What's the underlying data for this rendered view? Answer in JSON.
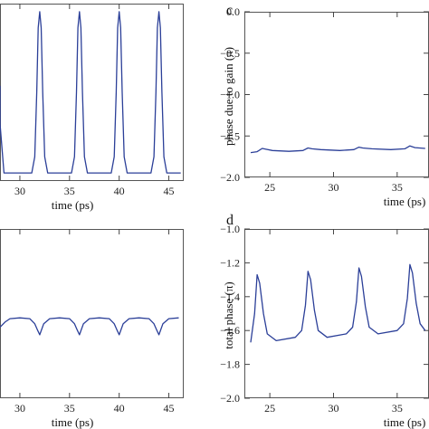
{
  "figure": {
    "background": "#ffffff",
    "line_color": "#2b3f98"
  },
  "chart_data": [
    {
      "id": "a",
      "type": "line",
      "panel_letter": "",
      "title": "",
      "xlabel": "time (ps)",
      "ylabel": "",
      "xlim": [
        28,
        46.5
      ],
      "ylim": [
        -0.05,
        1.05
      ],
      "xticks": [
        30,
        35,
        40,
        45
      ],
      "xtick_labels": [
        "30",
        "35",
        "40",
        "45"
      ],
      "yticks": [],
      "ytick_labels": [],
      "grid": false,
      "series": [
        {
          "x": [
            28.0,
            28.01,
            28.4,
            29.5,
            30.5,
            31.2,
            31.5,
            31.7,
            31.85,
            32.0,
            32.15,
            32.3,
            32.5,
            32.8,
            34.5,
            35.2,
            35.5,
            35.7,
            35.85,
            36.0,
            36.15,
            36.3,
            36.5,
            36.8,
            38.5,
            39.2,
            39.5,
            39.7,
            39.85,
            40.0,
            40.15,
            40.3,
            40.5,
            40.8,
            42.5,
            43.2,
            43.5,
            43.7,
            43.85,
            44.0,
            44.15,
            44.3,
            44.5,
            44.8,
            46.2
          ],
          "y": [
            0.54,
            0.3,
            0.0,
            0.0,
            0.0,
            0.0,
            0.1,
            0.5,
            0.9,
            1.0,
            0.9,
            0.5,
            0.1,
            0.0,
            0.0,
            0.0,
            0.1,
            0.5,
            0.9,
            1.0,
            0.9,
            0.5,
            0.1,
            0.0,
            0.0,
            0.0,
            0.1,
            0.5,
            0.9,
            1.0,
            0.9,
            0.5,
            0.1,
            0.0,
            0.0,
            0.0,
            0.1,
            0.5,
            0.9,
            1.0,
            0.9,
            0.5,
            0.1,
            0.0,
            0.0
          ]
        }
      ]
    },
    {
      "id": "c",
      "type": "line",
      "panel_letter": "c",
      "title": "",
      "xlabel": "time (ps)",
      "ylabel": "phase due to gain (π)",
      "xlim": [
        23,
        37.5
      ],
      "ylim": [
        -2.0,
        0.0
      ],
      "xticks": [
        25,
        30,
        35
      ],
      "xtick_labels": [
        "25",
        "30",
        "35"
      ],
      "yticks": [
        0.0,
        -0.5,
        -1.0,
        -1.5,
        -2.0
      ],
      "ytick_labels": [
        "0.0",
        "−0.5",
        "−1.0",
        "−1.5",
        "−2.0"
      ],
      "grid": false,
      "series": [
        {
          "x": [
            23.5,
            24.0,
            24.4,
            24.7,
            25.2,
            26.5,
            27.6,
            28.0,
            28.3,
            29.0,
            30.5,
            31.6,
            32.0,
            32.3,
            33.0,
            34.5,
            35.6,
            36.0,
            36.4,
            37.2
          ],
          "y": [
            -1.7,
            -1.69,
            -1.65,
            -1.66,
            -1.675,
            -1.685,
            -1.675,
            -1.645,
            -1.655,
            -1.665,
            -1.675,
            -1.665,
            -1.635,
            -1.645,
            -1.655,
            -1.665,
            -1.655,
            -1.62,
            -1.64,
            -1.65
          ]
        }
      ]
    },
    {
      "id": "b",
      "type": "line",
      "panel_letter": "",
      "title": "",
      "xlabel": "time (ps)",
      "ylabel": "",
      "xlim": [
        28,
        46.5
      ],
      "ylim": [
        0.0,
        1.0
      ],
      "xticks": [
        30,
        35,
        40,
        45
      ],
      "xtick_labels": [
        "30",
        "35",
        "40",
        "45"
      ],
      "yticks": [],
      "ytick_labels": [],
      "grid": false,
      "series": [
        {
          "x": [
            28.0,
            28.5,
            29.0,
            30.0,
            31.0,
            31.5,
            31.8,
            32.0,
            32.4,
            33.0,
            34.0,
            35.0,
            35.5,
            35.8,
            36.0,
            36.4,
            37.0,
            38.0,
            39.0,
            39.5,
            39.8,
            40.0,
            40.4,
            41.0,
            42.0,
            43.0,
            43.5,
            43.8,
            44.0,
            44.4,
            45.0,
            46.0
          ],
          "y": [
            0.42,
            0.45,
            0.47,
            0.475,
            0.47,
            0.44,
            0.4,
            0.375,
            0.44,
            0.47,
            0.475,
            0.47,
            0.44,
            0.4,
            0.375,
            0.44,
            0.47,
            0.475,
            0.47,
            0.44,
            0.4,
            0.375,
            0.44,
            0.47,
            0.475,
            0.47,
            0.44,
            0.4,
            0.375,
            0.44,
            0.47,
            0.475
          ]
        }
      ]
    },
    {
      "id": "d",
      "type": "line",
      "panel_letter": "d",
      "title": "",
      "xlabel": "time (ps)",
      "ylabel": "total phase (π)",
      "xlim": [
        23,
        37.5
      ],
      "ylim": [
        -2.0,
        -1.0
      ],
      "xticks": [
        25,
        30,
        35
      ],
      "xtick_labels": [
        "25",
        "30",
        "35"
      ],
      "yticks": [
        -1.0,
        -1.2,
        -1.4,
        -1.6,
        -1.8,
        -2.0
      ],
      "ytick_labels": [
        "−1.0",
        "−1.2",
        "−1.4",
        "−1.6",
        "−1.8",
        "−2.0"
      ],
      "grid": false,
      "series": [
        {
          "x": [
            23.5,
            23.8,
            24.0,
            24.2,
            24.5,
            24.8,
            25.5,
            27.0,
            27.5,
            27.8,
            28.0,
            28.2,
            28.5,
            28.8,
            29.5,
            31.0,
            31.5,
            31.8,
            32.0,
            32.2,
            32.5,
            32.8,
            33.5,
            35.0,
            35.5,
            35.8,
            36.0,
            36.2,
            36.5,
            36.8,
            37.2
          ],
          "y": [
            -1.67,
            -1.5,
            -1.27,
            -1.32,
            -1.5,
            -1.62,
            -1.66,
            -1.64,
            -1.6,
            -1.45,
            -1.25,
            -1.3,
            -1.48,
            -1.6,
            -1.64,
            -1.62,
            -1.58,
            -1.43,
            -1.23,
            -1.28,
            -1.46,
            -1.58,
            -1.62,
            -1.6,
            -1.56,
            -1.41,
            -1.21,
            -1.26,
            -1.44,
            -1.56,
            -1.6
          ]
        }
      ]
    }
  ]
}
